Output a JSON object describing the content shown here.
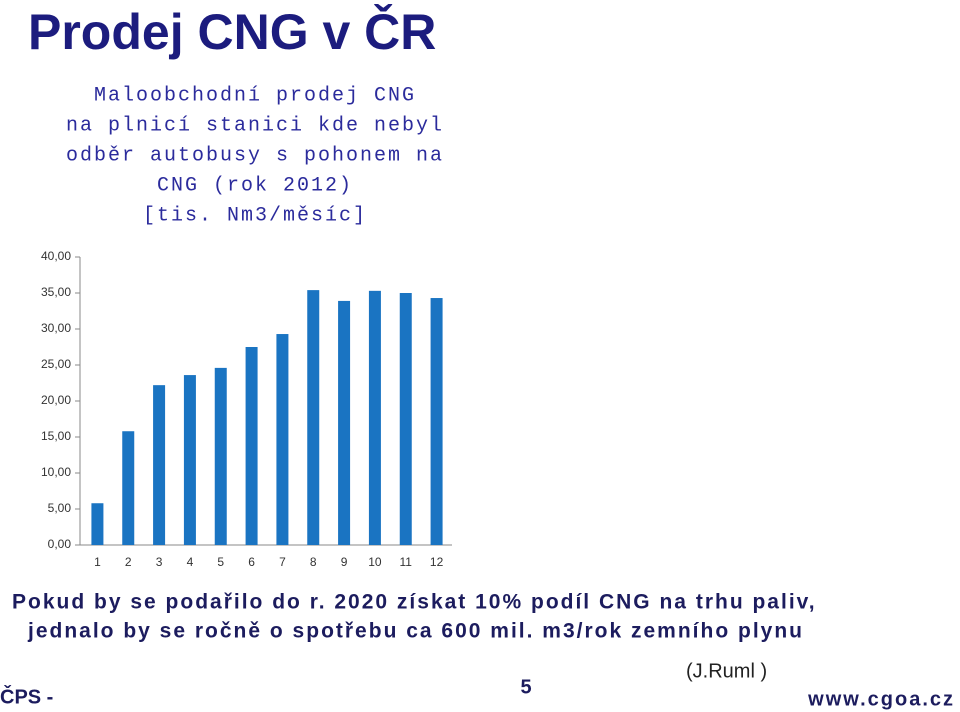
{
  "slide_title": "Prodej CNG v ČR",
  "chart_data": {
    "type": "bar",
    "title": [
      "Maloobchodní prodej CNG",
      "na plnicí stanici kde nebyl",
      "odběr autobusy s pohonem na",
      "CNG (rok 2012)",
      "[tis. Nm3/měsíc]"
    ],
    "categories": [
      "1",
      "2",
      "3",
      "4",
      "5",
      "6",
      "7",
      "8",
      "9",
      "10",
      "11",
      "12"
    ],
    "values": [
      5.8,
      15.8,
      22.2,
      23.6,
      24.6,
      27.5,
      29.3,
      35.4,
      33.9,
      35.3,
      35.0,
      34.3
    ],
    "color": "#1a74c2",
    "ylim": [
      0,
      40
    ],
    "yticks": [
      {
        "value": 0,
        "label": "0,00"
      },
      {
        "value": 5,
        "label": "5,00"
      },
      {
        "value": 10,
        "label": "10,00"
      },
      {
        "value": 15,
        "label": "15,00"
      },
      {
        "value": 20,
        "label": "20,00"
      },
      {
        "value": 25,
        "label": "25,00"
      },
      {
        "value": 30,
        "label": "30,00"
      },
      {
        "value": 35,
        "label": "35,00"
      },
      {
        "value": 40,
        "label": "40,00"
      }
    ],
    "grid": false
  },
  "footer": {
    "lines": [
      "Pokud by se podařilo do r. 2020 získat 10% podíl CNG na trhu paliv,",
      "jednalo by se ročně o spotřebu ca 600 mil. m3/rok zemního plynu"
    ],
    "org": "ČPS -",
    "page": "5",
    "author": "(J.Ruml )",
    "url": "www.cgoa.cz"
  }
}
